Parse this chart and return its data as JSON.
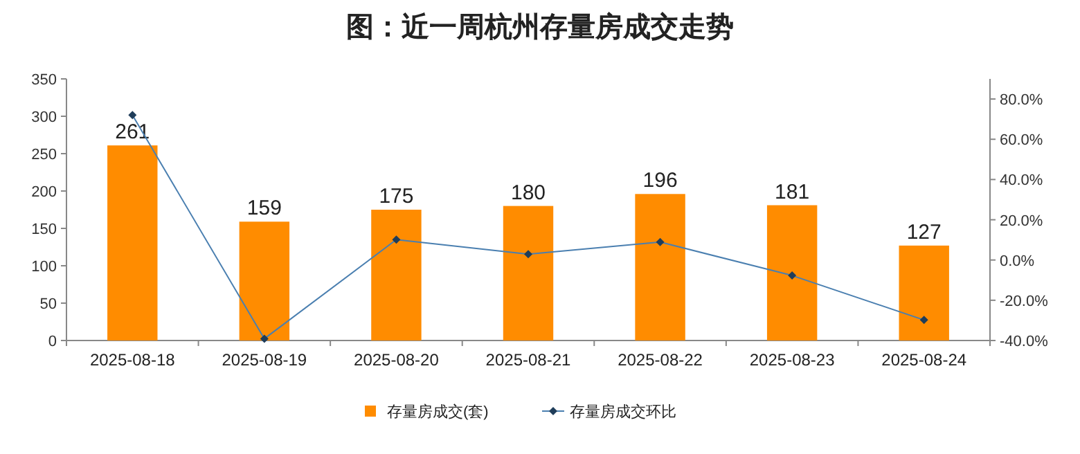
{
  "chart_data": {
    "type": "bar",
    "title": "图：近一周杭州存量房成交走势",
    "categories": [
      "2025-08-18",
      "2025-08-19",
      "2025-08-20",
      "2025-08-21",
      "2025-08-22",
      "2025-08-23",
      "2025-08-24"
    ],
    "series": [
      {
        "name": "存量房成交(套)",
        "color": "#ff8c00",
        "values": [
          261,
          159,
          175,
          180,
          196,
          181,
          127
        ],
        "value_labels": [
          "261",
          "159",
          "175",
          "180",
          "196",
          "181",
          "127"
        ]
      },
      {
        "name": "存量房成交环比",
        "type": "line",
        "axis": "y2",
        "color": "#4a7fb0",
        "marker": "diamond",
        "values": [
          72,
          -39.1,
          10.1,
          2.9,
          8.9,
          -7.7,
          -29.8
        ]
      }
    ],
    "ylim": [
      0,
      350
    ],
    "yticks": [
      0,
      50,
      100,
      150,
      200,
      250,
      300,
      350
    ],
    "y2lim": [
      -40,
      90
    ],
    "y2ticks": [
      {
        "value": -40,
        "label": "-40.0%"
      },
      {
        "value": -20,
        "label": "-20.0%"
      },
      {
        "value": 0,
        "label": "0.0%"
      },
      {
        "value": 20,
        "label": "20.0%"
      },
      {
        "value": 40,
        "label": "40.0%"
      },
      {
        "value": 60,
        "label": "60.0%"
      },
      {
        "value": 80,
        "label": "80.0%"
      }
    ],
    "legend": "bottom"
  }
}
